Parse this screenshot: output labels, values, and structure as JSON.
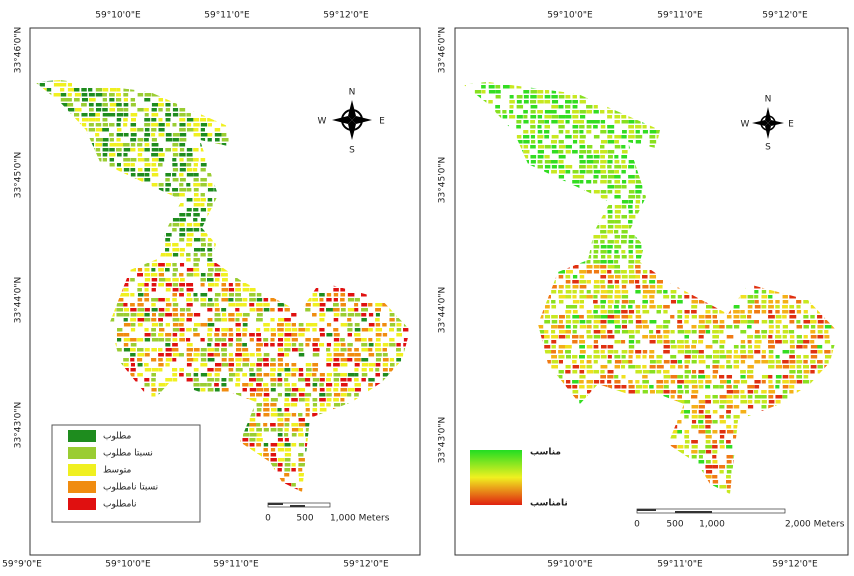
{
  "maps": [
    {
      "top_labels": [
        "59°10'0\"E",
        "59°11'0\"E",
        "59°12'0\"E"
      ],
      "bottom_labels": [
        "59°9'0\"E",
        "59°10'0\"E",
        "59°11'0\"E",
        "59°12'0\"E"
      ],
      "left_labels": [
        "33°46'0\"N",
        "33°45'0\"N",
        "33°44'0\"N",
        "33°43'0\"N"
      ],
      "compass": {
        "n": "N",
        "e": "E",
        "s": "S",
        "w": "W"
      },
      "legend": [
        {
          "label": "مطلوب",
          "color": "#1e8c1e"
        },
        {
          "label": "نسبتا مطلوب",
          "color": "#9acd32"
        },
        {
          "label": "متوسط",
          "color": "#f0f020"
        },
        {
          "label": "نسبتا نامطلوب",
          "color": "#f08c10"
        },
        {
          "label": "نامطلوب",
          "color": "#e01010"
        }
      ],
      "scale": [
        "0",
        "500",
        "1,000 Meters"
      ]
    },
    {
      "top_labels": [
        "59°10'0\"E",
        "59°11'0\"E",
        "59°12'0\"E"
      ],
      "bottom_labels": [
        "59°10'0\"E",
        "59°11'0\"E",
        "59°12'0\"E"
      ],
      "left_labels": [
        "33°46'0\"N",
        "33°45'0\"N",
        "33°44'0\"N",
        "33°43'0\"N"
      ],
      "compass": {
        "n": "N",
        "e": "E",
        "s": "S",
        "w": "W"
      },
      "legend_high": "مناسب",
      "legend_low": "نامناسب",
      "scale": [
        "0",
        "500",
        "1,000",
        "2,000 Meters"
      ]
    }
  ]
}
